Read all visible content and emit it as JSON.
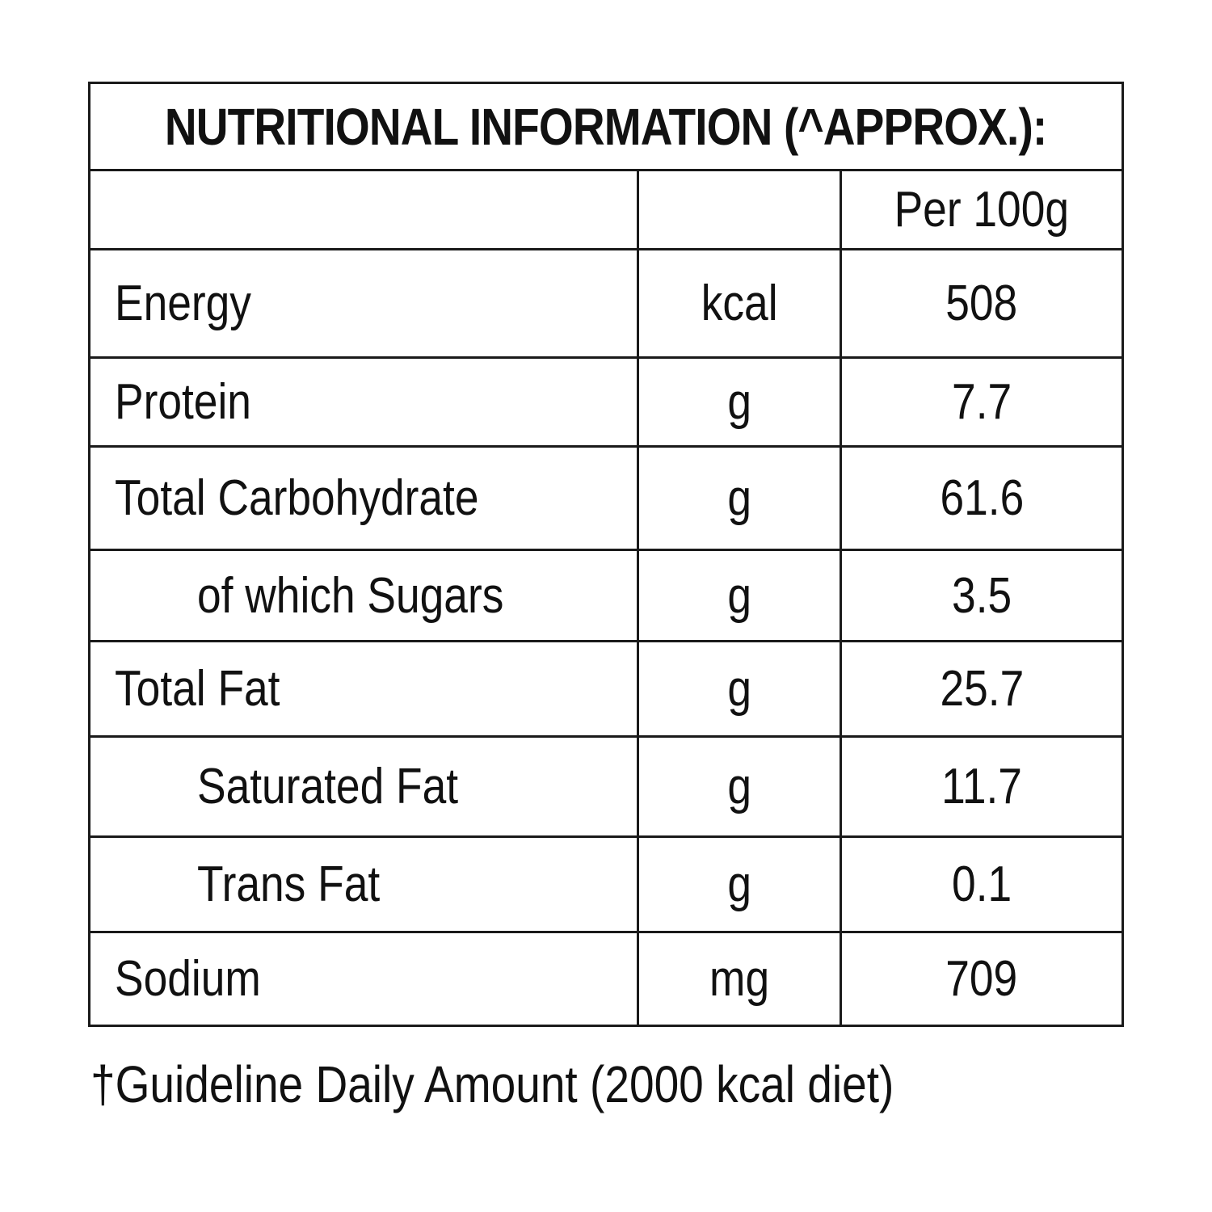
{
  "title": "NUTRITIONAL INFORMATION (^APPROX.):",
  "header": {
    "name": "",
    "unit": "",
    "value": "Per 100g"
  },
  "rows": [
    {
      "name": "Energy",
      "unit": "kcal",
      "value": "508"
    },
    {
      "name": "Protein",
      "unit": "g",
      "value": "7.7"
    },
    {
      "name": "Total Carbohydrate",
      "unit": "g",
      "value": "61.6"
    },
    {
      "name": "of which Sugars",
      "unit": "g",
      "value": "3.5"
    },
    {
      "name": "Total Fat",
      "unit": "g",
      "value": "25.7"
    },
    {
      "name": "Saturated Fat",
      "unit": "g",
      "value": "11.7"
    },
    {
      "name": "Trans Fat",
      "unit": "g",
      "value": "0.1"
    },
    {
      "name": "Sodium",
      "unit": "mg",
      "value": "709"
    }
  ],
  "footnote": "†Guideline Daily Amount (2000 kcal diet)"
}
